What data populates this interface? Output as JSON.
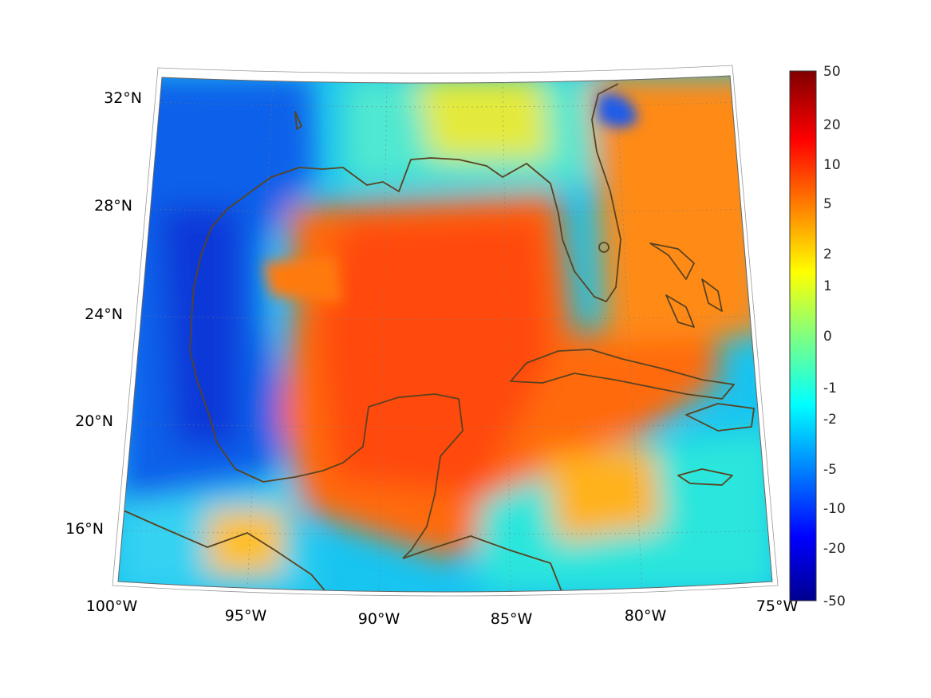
{
  "map": {
    "projection": "conic",
    "region": "Gulf of Mexico and western Caribbean",
    "lon_range": [
      -100,
      -75
    ],
    "lat_range": [
      14,
      33
    ],
    "grid": true,
    "coastline_color": "#5a4320",
    "lat_labels": [
      "32°N",
      "28°N",
      "24°N",
      "20°N",
      "16°N"
    ],
    "lon_labels": [
      "100°W",
      "95°W",
      "90°W",
      "85°W",
      "80°W",
      "75°W"
    ]
  },
  "colorbar": {
    "colormap": "jet",
    "ticks": [
      "50",
      "20",
      "10",
      "5",
      "2",
      "1",
      "0",
      "-1",
      "-2",
      "-5",
      "-10",
      "-20",
      "-50"
    ],
    "top_color": "#800000",
    "bottom_color": "#00008f"
  }
}
